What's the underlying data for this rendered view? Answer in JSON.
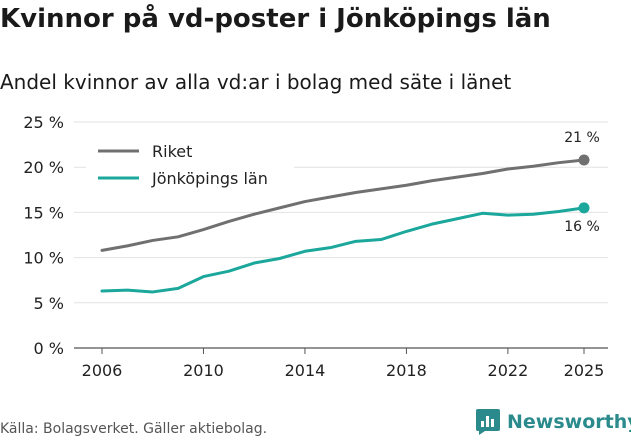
{
  "chart_data": {
    "type": "line",
    "title": "Kvinnor på vd-poster i Jönköpings län",
    "subtitle": "Andel kvinnor av alla vd:ar i bolag med säte i länet",
    "x": [
      2006,
      2007,
      2008,
      2009,
      2010,
      2011,
      2012,
      2013,
      2014,
      2015,
      2016,
      2017,
      2018,
      2019,
      2020,
      2021,
      2022,
      2023,
      2024,
      2025
    ],
    "series": [
      {
        "name": "Riket",
        "color": "#707070",
        "values": [
          10.8,
          11.3,
          11.9,
          12.3,
          13.1,
          14.0,
          14.8,
          15.5,
          16.2,
          16.7,
          17.2,
          17.6,
          18.0,
          18.5,
          18.9,
          19.3,
          19.8,
          20.1,
          20.5,
          20.8
        ],
        "end_label": "21 %"
      },
      {
        "name": "Jönköpings län",
        "color": "#1ba79c",
        "values": [
          6.3,
          6.4,
          6.2,
          6.6,
          7.9,
          8.5,
          9.4,
          9.9,
          10.7,
          11.1,
          11.8,
          12.0,
          12.9,
          13.7,
          14.3,
          14.9,
          14.7,
          14.8,
          15.1,
          15.5
        ],
        "end_label": "16 %"
      }
    ],
    "x_ticks": [
      2006,
      2010,
      2014,
      2018,
      2022,
      2025
    ],
    "x_tick_labels": [
      "2006",
      "2010",
      "2014",
      "2018",
      "2022",
      "2025"
    ],
    "y_ticks": [
      0,
      5,
      10,
      15,
      20,
      25
    ],
    "y_tick_labels": [
      "0 %",
      "5 %",
      "10 %",
      "15 %",
      "20 %",
      "25 %"
    ],
    "ylim": [
      0,
      25
    ],
    "xlim": [
      2006,
      2025
    ],
    "grid": true,
    "legend_position": "top-left"
  },
  "source": "Källa: Bolagsverket. Gäller aktiebolag.",
  "brand": {
    "name": "Newsworthy",
    "icon": "bar-chart-icon",
    "color": "#2a8a8c"
  }
}
